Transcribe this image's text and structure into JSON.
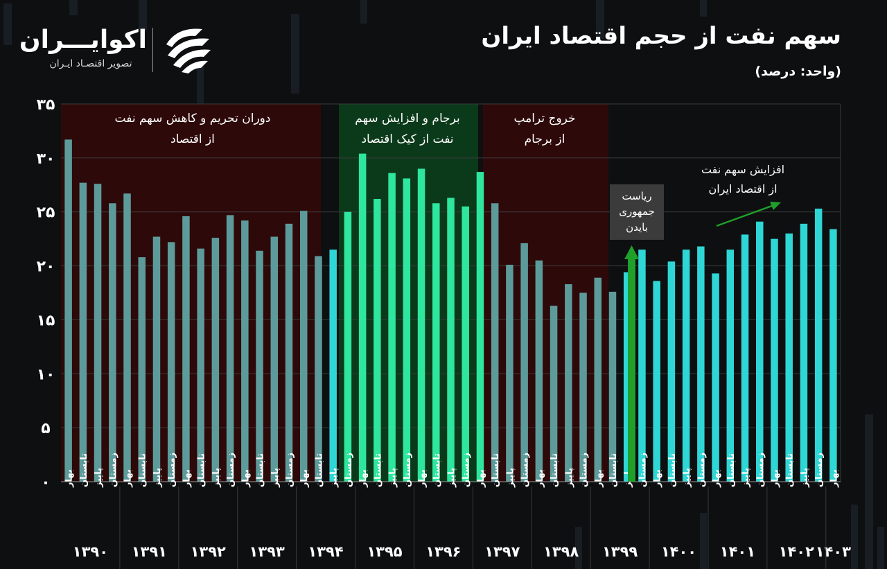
{
  "brand": {
    "name": "اکوایـــران",
    "tagline": "تصویر اقتصـاد ایـران"
  },
  "header": {
    "title": "سهم نفت از حجم اقتصاد ایران",
    "unit": "(واحد: درصد)"
  },
  "colors": {
    "background": "#0d0f10",
    "bar_sanction": "#5d9b9b",
    "bar_jcpoa": "#2ee69e",
    "bar_other": "#2fd6d6",
    "zone_red": "#2e0909",
    "zone_green": "#0b3a1a",
    "arrow_green": "#1fa02a",
    "callout_bg": "#3b3b3b",
    "grid": "#3a3a3a"
  },
  "annotations": {
    "zone_sanction": [
      "دوران تحریم و کاهش سهم نفت",
      "از اقتصاد"
    ],
    "zone_jcpoa": [
      "برجام و افزایش سهم",
      "نفت از کیک اقتصاد"
    ],
    "zone_trump": [
      "خروج ترامپ",
      "از برجام"
    ],
    "biden": [
      "ریاست",
      "جمهوری",
      "بایدن"
    ],
    "increase": [
      "افزایش سهم نفت",
      "از اقتصاد ایران"
    ]
  },
  "chart_data": {
    "type": "bar",
    "ylabel": "",
    "ylim": [
      0,
      35
    ],
    "yticks": [
      "۰",
      "۵",
      "۱۰",
      "۱۵",
      "۲۰",
      "۲۵",
      "۳۰",
      "۳۵"
    ],
    "grid": true,
    "season_labels": [
      "بهار",
      "تابستان",
      "پاییز",
      "زمستان"
    ],
    "years": [
      "۱۳۹۰",
      "۱۳۹۱",
      "۱۳۹۲",
      "۱۳۹۳",
      "۱۳۹۴",
      "۱۳۹۵",
      "۱۳۹۶",
      "۱۳۹۷",
      "۱۳۹۸",
      "۱۳۹۹",
      "۱۴۰۰",
      "۱۴۰۱",
      "۱۴۰۲",
      "۱۴۰۳"
    ],
    "values": [
      31.7,
      27.7,
      27.6,
      25.8,
      26.7,
      20.8,
      22.7,
      22.2,
      24.6,
      21.6,
      22.6,
      24.7,
      24.2,
      21.4,
      22.7,
      23.9,
      25.1,
      20.9,
      21.5,
      25.0,
      30.4,
      26.2,
      28.6,
      28.1,
      29.0,
      25.8,
      26.3,
      25.5,
      28.7,
      25.8,
      20.1,
      22.1,
      20.5,
      16.3,
      18.3,
      17.5,
      18.9,
      17.6,
      19.4,
      21.5,
      18.6,
      20.4,
      21.5,
      21.8,
      19.3,
      21.5,
      22.9,
      24.1,
      22.5,
      23.0,
      23.9,
      25.3,
      23.4
    ],
    "bar_groups": [
      "sanction",
      "sanction",
      "sanction",
      "sanction",
      "sanction",
      "sanction",
      "sanction",
      "sanction",
      "sanction",
      "sanction",
      "sanction",
      "sanction",
      "sanction",
      "sanction",
      "sanction",
      "sanction",
      "sanction",
      "sanction",
      "other",
      "jcpoa",
      "jcpoa",
      "jcpoa",
      "jcpoa",
      "jcpoa",
      "jcpoa",
      "jcpoa",
      "jcpoa",
      "jcpoa",
      "jcpoa",
      "sanction",
      "sanction",
      "sanction",
      "sanction",
      "sanction",
      "sanction",
      "sanction",
      "sanction",
      "sanction",
      "other",
      "other",
      "other",
      "other",
      "other",
      "other",
      "other",
      "other",
      "other",
      "other",
      "other",
      "other",
      "other",
      "other",
      "other"
    ]
  }
}
